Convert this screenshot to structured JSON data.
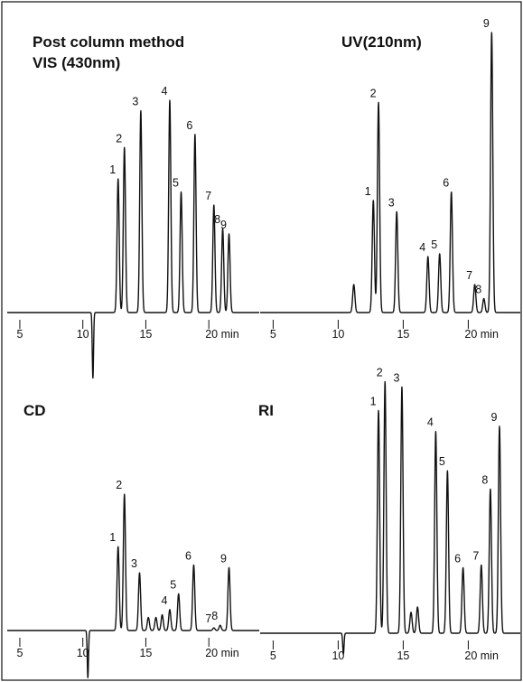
{
  "figure": {
    "frame": true
  },
  "chart_data": [
    {
      "type": "line",
      "title": [
        "Post column method",
        "VIS (430nm)"
      ],
      "xlim": [
        4,
        24
      ],
      "x_ticks": [
        5,
        10,
        15,
        20
      ],
      "x_tick_labels": [
        "5",
        "10",
        "15",
        "20 min"
      ],
      "baseline_dip": {
        "x": 10.8,
        "depth": -0.25
      },
      "peaks": [
        {
          "label": "1",
          "x": 12.8,
          "height": 0.51
        },
        {
          "label": "2",
          "x": 13.3,
          "height": 0.63
        },
        {
          "label": "3",
          "x": 14.6,
          "height": 0.77
        },
        {
          "label": "4",
          "x": 16.9,
          "height": 0.81
        },
        {
          "label": "5",
          "x": 17.8,
          "height": 0.46
        },
        {
          "label": "6",
          "x": 18.9,
          "height": 0.68
        },
        {
          "label": "7",
          "x": 20.4,
          "height": 0.41
        },
        {
          "label": "8",
          "x": 21.1,
          "height": 0.32
        },
        {
          "label": "9",
          "x": 21.6,
          "height": 0.3
        }
      ]
    },
    {
      "type": "line",
      "title": [
        "UV(210nm)"
      ],
      "xlim": [
        4,
        24
      ],
      "x_ticks": [
        5,
        10,
        15,
        20
      ],
      "x_tick_labels": [
        "5",
        "10",
        "15",
        "20 min"
      ],
      "peaks": [
        {
          "label": "",
          "x": 11.2,
          "height": 0.1
        },
        {
          "label": "1",
          "x": 12.7,
          "height": 0.4
        },
        {
          "label": "2",
          "x": 13.1,
          "height": 0.75
        },
        {
          "label": "3",
          "x": 14.5,
          "height": 0.36
        },
        {
          "label": "4",
          "x": 16.9,
          "height": 0.2
        },
        {
          "label": "5",
          "x": 17.8,
          "height": 0.21
        },
        {
          "label": "6",
          "x": 18.7,
          "height": 0.43
        },
        {
          "label": "7",
          "x": 20.5,
          "height": 0.1
        },
        {
          "label": "8",
          "x": 21.2,
          "height": 0.05
        },
        {
          "label": "9",
          "x": 21.8,
          "height": 1.0
        }
      ]
    },
    {
      "type": "line",
      "title": [
        "CD"
      ],
      "xlim": [
        4,
        24
      ],
      "x_ticks": [
        5,
        10,
        15,
        20
      ],
      "x_tick_labels": [
        "5",
        "10",
        "15",
        "20 min"
      ],
      "baseline_dip": {
        "x": 10.4,
        "depth": -0.18
      },
      "peaks": [
        {
          "label": "1",
          "x": 12.8,
          "height": 0.32
        },
        {
          "label": "2",
          "x": 13.3,
          "height": 0.52
        },
        {
          "label": "3",
          "x": 14.5,
          "height": 0.22
        },
        {
          "label": "",
          "x": 15.2,
          "height": 0.05
        },
        {
          "label": "",
          "x": 15.8,
          "height": 0.05
        },
        {
          "label": "",
          "x": 16.3,
          "height": 0.06
        },
        {
          "label": "4",
          "x": 16.9,
          "height": 0.08
        },
        {
          "label": "5",
          "x": 17.6,
          "height": 0.14
        },
        {
          "label": "6",
          "x": 18.8,
          "height": 0.25
        },
        {
          "label": "7",
          "x": 20.4,
          "height": 0.01
        },
        {
          "label": "8",
          "x": 20.9,
          "height": 0.02
        },
        {
          "label": "9",
          "x": 21.6,
          "height": 0.24
        }
      ]
    },
    {
      "type": "line",
      "title": [
        "RI"
      ],
      "xlim": [
        4,
        24
      ],
      "x_ticks": [
        5,
        10,
        15,
        20
      ],
      "x_tick_labels": [
        "5",
        "10",
        "15",
        "20 min"
      ],
      "baseline_dip": {
        "x": 10.4,
        "depth": -0.08
      },
      "peaks": [
        {
          "label": "1",
          "x": 13.1,
          "height": 0.85
        },
        {
          "label": "2",
          "x": 13.6,
          "height": 0.96
        },
        {
          "label": "3",
          "x": 14.9,
          "height": 0.94
        },
        {
          "label": "",
          "x": 15.6,
          "height": 0.08
        },
        {
          "label": "",
          "x": 16.1,
          "height": 0.1
        },
        {
          "label": "4",
          "x": 17.5,
          "height": 0.77
        },
        {
          "label": "5",
          "x": 18.4,
          "height": 0.62
        },
        {
          "label": "6",
          "x": 19.6,
          "height": 0.25
        },
        {
          "label": "7",
          "x": 21.0,
          "height": 0.26
        },
        {
          "label": "8",
          "x": 21.7,
          "height": 0.55
        },
        {
          "label": "9",
          "x": 22.4,
          "height": 0.79
        }
      ]
    }
  ]
}
